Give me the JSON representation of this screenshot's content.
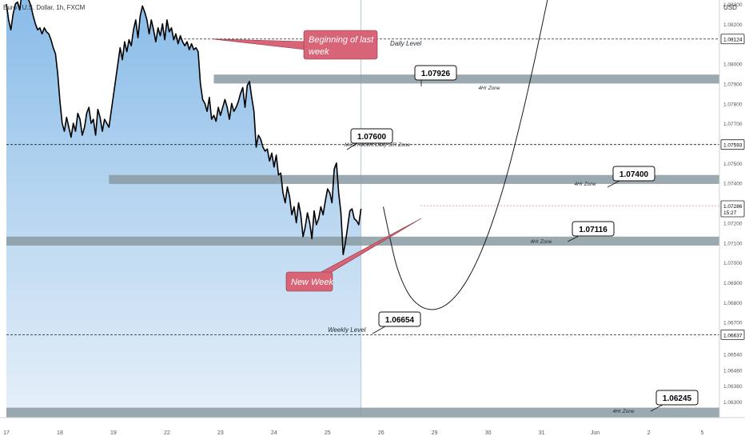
{
  "header": {
    "symbol_title": "Euro / U.S. Dollar, 1h, FXCM",
    "currency": "USD",
    "countdown": "15:27"
  },
  "colors": {
    "price_line": "#000000",
    "zone": "#8a9ba3",
    "pink_box": "#d86477",
    "area_top": "#7fb6e6",
    "area_bottom": "#e3eef8",
    "current_price_line": "#e57373"
  },
  "chart_data": {
    "type": "line",
    "title": "Euro / U.S. Dollar, 1h, FXCM",
    "ylim": [
      1.0622,
      1.0832
    ],
    "y_ticks": [
      "1.08300",
      "1.08200",
      "1.08000",
      "1.07900",
      "1.07800",
      "1.07700",
      "1.07500",
      "1.07400",
      "1.07200",
      "1.07100",
      "1.07000",
      "1.06900",
      "1.06800",
      "1.06700",
      "1.06540",
      "1.06460",
      "1.06380",
      "1.06300"
    ],
    "x_ticks": [
      "17",
      "18",
      "19",
      "22",
      "23",
      "24",
      "25",
      "26",
      "29",
      "30",
      "31",
      "Jun",
      "2",
      "5"
    ],
    "x_tick_index": [
      0,
      24,
      48,
      72,
      96,
      120,
      144,
      168,
      192,
      216,
      240,
      264,
      288,
      312
    ],
    "price_series": {
      "x_start_index": 0,
      "close": [
        1.083,
        1.0822,
        1.0817,
        1.0825,
        1.083,
        1.0831,
        1.0827,
        1.0836,
        1.084,
        1.0838,
        1.0832,
        1.0829,
        1.0824,
        1.082,
        1.0817,
        1.0818,
        1.0815,
        1.0818,
        1.0816,
        1.0815,
        1.0812,
        1.0808,
        1.0805,
        1.0795,
        1.0781,
        1.077,
        1.0766,
        1.0773,
        1.0768,
        1.0763,
        1.077,
        1.0766,
        1.0775,
        1.0772,
        1.0764,
        1.0768,
        1.0775,
        1.0778,
        1.077,
        1.0772,
        1.0764,
        1.0777,
        1.0773,
        1.0766,
        1.0772,
        1.077,
        1.0768,
        1.0776,
        1.0784,
        1.0792,
        1.08,
        1.0808,
        1.0802,
        1.0811,
        1.0806,
        1.0812,
        1.0809,
        1.0817,
        1.0822,
        1.0813,
        1.0824,
        1.0829,
        1.0826,
        1.0822,
        1.0815,
        1.0822,
        1.0817,
        1.0811,
        1.0818,
        1.0814,
        1.082,
        1.0812,
        1.0822,
        1.0816,
        1.0818,
        1.0812,
        1.0815,
        1.081,
        1.0814,
        1.0811,
        1.0809,
        1.0811,
        1.0807,
        1.081,
        1.0807,
        1.0808,
        1.0806,
        1.079,
        1.0782,
        1.078,
        1.0776,
        1.0783,
        1.0772,
        1.0774,
        1.0771,
        1.0778,
        1.0774,
        1.0778,
        1.0782,
        1.0778,
        1.0772,
        1.078,
        1.0776,
        1.0778,
        1.0781,
        1.0785,
        1.0788,
        1.0778,
        1.0789,
        1.0791,
        1.0783,
        1.0776,
        1.0758,
        1.0764,
        1.0762,
        1.0758,
        1.0756,
        1.0757,
        1.0751,
        1.0755,
        1.0748,
        1.0754,
        1.0744,
        1.0745,
        1.0735,
        1.073,
        1.0738,
        1.0733,
        1.0724,
        1.0728,
        1.072,
        1.073,
        1.0724,
        1.0713,
        1.0718,
        1.0725,
        1.072,
        1.0712,
        1.0726,
        1.0719,
        1.0722,
        1.0728,
        1.0724,
        1.0731,
        1.0737,
        1.0735,
        1.073,
        1.0747,
        1.075,
        1.0735,
        1.0725,
        1.0704,
        1.071,
        1.0718,
        1.0726,
        1.0727,
        1.0722,
        1.0721,
        1.0719,
        1.0727
      ]
    },
    "projection": {
      "x_index": [
        169,
        172,
        175,
        180,
        185,
        190,
        195,
        200,
        205,
        210,
        215,
        220,
        225,
        230,
        235,
        240,
        245,
        250,
        255,
        260
      ],
      "y": [
        1.0728,
        1.0712,
        1.0697,
        1.0684,
        1.0678,
        1.0676,
        1.0677,
        1.0681,
        1.0688,
        1.0698,
        1.0711,
        1.0727,
        1.0746,
        1.0768,
        1.0792,
        1.0818,
        1.0845,
        1.0873,
        1.0901,
        1.093
      ]
    },
    "zones": [
      {
        "label": "4Hr Zone",
        "y_low": 1.079,
        "y_high": 1.07945,
        "x_start_index": 93,
        "x_end_index": 332
      },
      {
        "label": "4Hr Zone",
        "y_low": 1.07395,
        "y_high": 1.0744,
        "x_start_index": 46,
        "x_end_index": 332
      },
      {
        "label": "4Hr Zone",
        "y_low": 1.07085,
        "y_high": 1.0713,
        "x_start_index": 0,
        "x_end_index": 332
      },
      {
        "label": "4Hr Zone",
        "y_low": 1.0622,
        "y_high": 1.0627,
        "x_start_index": 0,
        "x_end_index": 332
      }
    ],
    "levels": [
      {
        "label": "Daily Level",
        "y": 1.08124,
        "x_start_index": 76
      },
      {
        "label": "Most Recent Daily S/R Zone",
        "y": 1.07593,
        "x_start_index": 0
      },
      {
        "label": "Weekly Level",
        "y": 1.06637,
        "x_start_index": 0
      }
    ],
    "price_tags": [
      "1.08124",
      "1.07593",
      "1.07286",
      "1.06637"
    ],
    "callouts": [
      "1.07926",
      "1.07600",
      "1.07400",
      "1.07116",
      "1.06654",
      "1.06245"
    ],
    "annotations": [
      "Beginning of last week",
      "New Week"
    ]
  }
}
